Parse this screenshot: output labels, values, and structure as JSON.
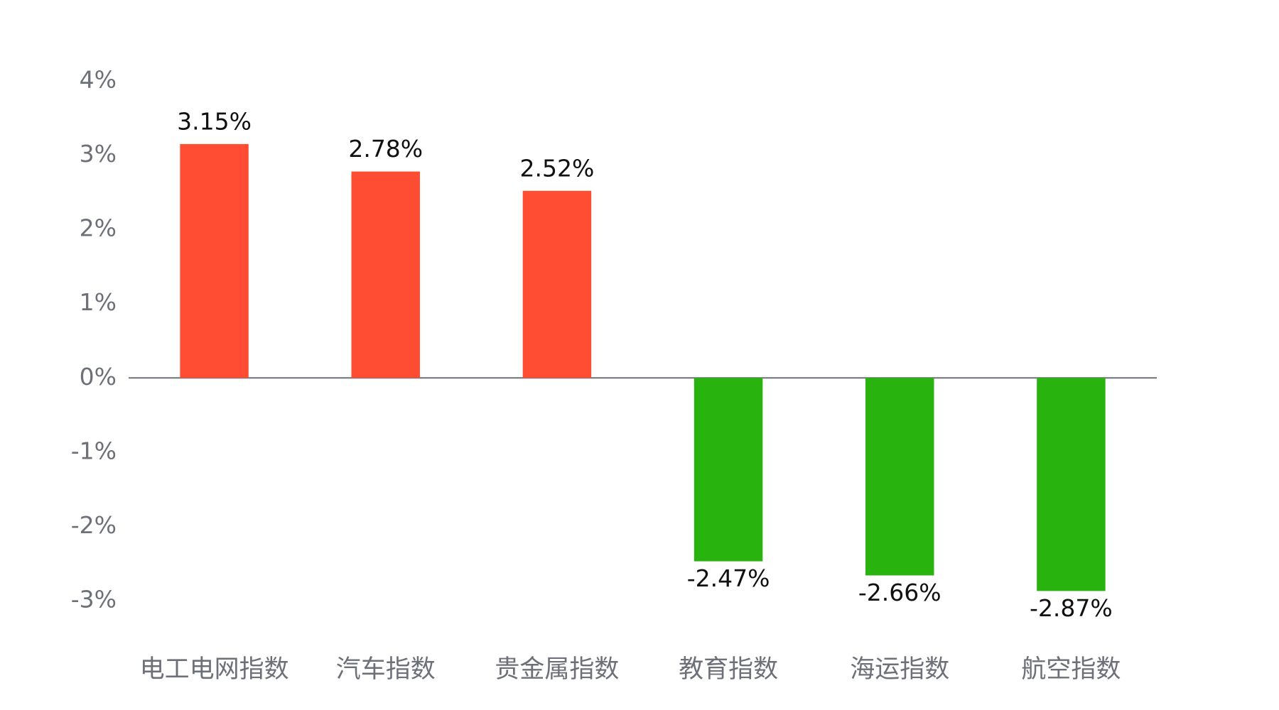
{
  "chart_data": {
    "type": "bar",
    "categories": [
      "电工电网指数",
      "汽车指数",
      "贵金属指数",
      "教育指数",
      "海运指数",
      "航空指数"
    ],
    "values": [
      3.15,
      2.78,
      2.52,
      -2.47,
      -2.66,
      -2.87
    ],
    "value_labels": [
      "3.15%",
      "2.78%",
      "2.52%",
      "-2.47%",
      "-2.66%",
      "-2.87%"
    ],
    "colors": [
      "#ff4d33",
      "#ff4d33",
      "#ff4d33",
      "#29b30f",
      "#29b30f",
      "#29b30f"
    ],
    "ylim": [
      -3,
      4
    ],
    "yticks": [
      {
        "value": 4,
        "label": "4%"
      },
      {
        "value": 3,
        "label": "3%"
      },
      {
        "value": 2,
        "label": "2%"
      },
      {
        "value": 1,
        "label": "1%"
      },
      {
        "value": 0,
        "label": "0%"
      },
      {
        "value": -1,
        "label": "-1%"
      },
      {
        "value": -2,
        "label": "-2%"
      },
      {
        "value": -3,
        "label": "-3%"
      }
    ],
    "grid": false
  }
}
